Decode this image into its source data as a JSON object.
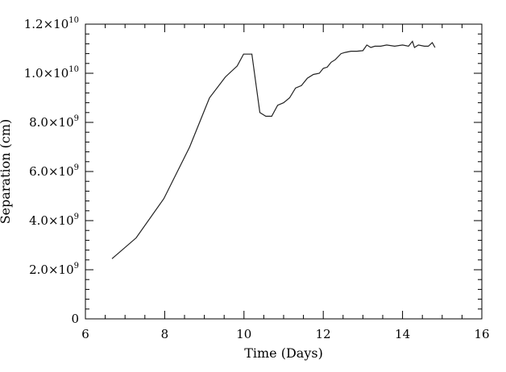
{
  "chart_data": {
    "type": "line",
    "xlabel": "Time (Days)",
    "ylabel": "Separation (cm)",
    "xlim": [
      6,
      16
    ],
    "ylim": [
      0,
      12000000000
    ],
    "x_ticks": [
      6,
      8,
      10,
      12,
      14,
      16
    ],
    "x_tick_labels": [
      "6",
      "8",
      "10",
      "12",
      "14",
      "16"
    ],
    "y_ticks": [
      {
        "value": 0,
        "mantissa": "0",
        "exp": ""
      },
      {
        "value": 2000000000,
        "mantissa": "2.0×10",
        "exp": "9"
      },
      {
        "value": 4000000000,
        "mantissa": "4.0×10",
        "exp": "9"
      },
      {
        "value": 6000000000,
        "mantissa": "6.0×10",
        "exp": "9"
      },
      {
        "value": 8000000000,
        "mantissa": "8.0×10",
        "exp": "9"
      },
      {
        "value": 10000000000,
        "mantissa": "1.0×10",
        "exp": "10"
      },
      {
        "value": 12000000000,
        "mantissa": "1.2×10",
        "exp": "10"
      }
    ],
    "series": [
      {
        "x": [
          6.67,
          7.28,
          7.98,
          8.63,
          9.13,
          9.53,
          9.83,
          9.99,
          10.2,
          10.4,
          10.55,
          10.7,
          10.85,
          11.0,
          11.15,
          11.3,
          11.45,
          11.6,
          11.75,
          11.9,
          12.0,
          12.1,
          12.2,
          12.3,
          12.45,
          12.55,
          12.7,
          12.85,
          13.0,
          13.1,
          13.2,
          13.3,
          13.45,
          13.6,
          13.8,
          14.0,
          14.15,
          14.25,
          14.3,
          14.4,
          14.55,
          14.65,
          14.75,
          14.82
        ],
        "y": [
          2450000000,
          3300000000,
          4900000000,
          7000000000,
          9000000000,
          9850000000,
          10300000000,
          10780000000,
          10780000000,
          8400000000,
          8250000000,
          8250000000,
          8700000000,
          8800000000,
          9000000000,
          9400000000,
          9500000000,
          9800000000,
          9950000000,
          10000000000,
          10200000000,
          10250000000,
          10450000000,
          10550000000,
          10800000000,
          10850000000,
          10900000000,
          10900000000,
          10920000000,
          11150000000,
          11050000000,
          11100000000,
          11100000000,
          11150000000,
          11100000000,
          11150000000,
          11100000000,
          11300000000,
          11050000000,
          11150000000,
          11100000000,
          11100000000,
          11250000000,
          11050000000
        ]
      }
    ]
  }
}
